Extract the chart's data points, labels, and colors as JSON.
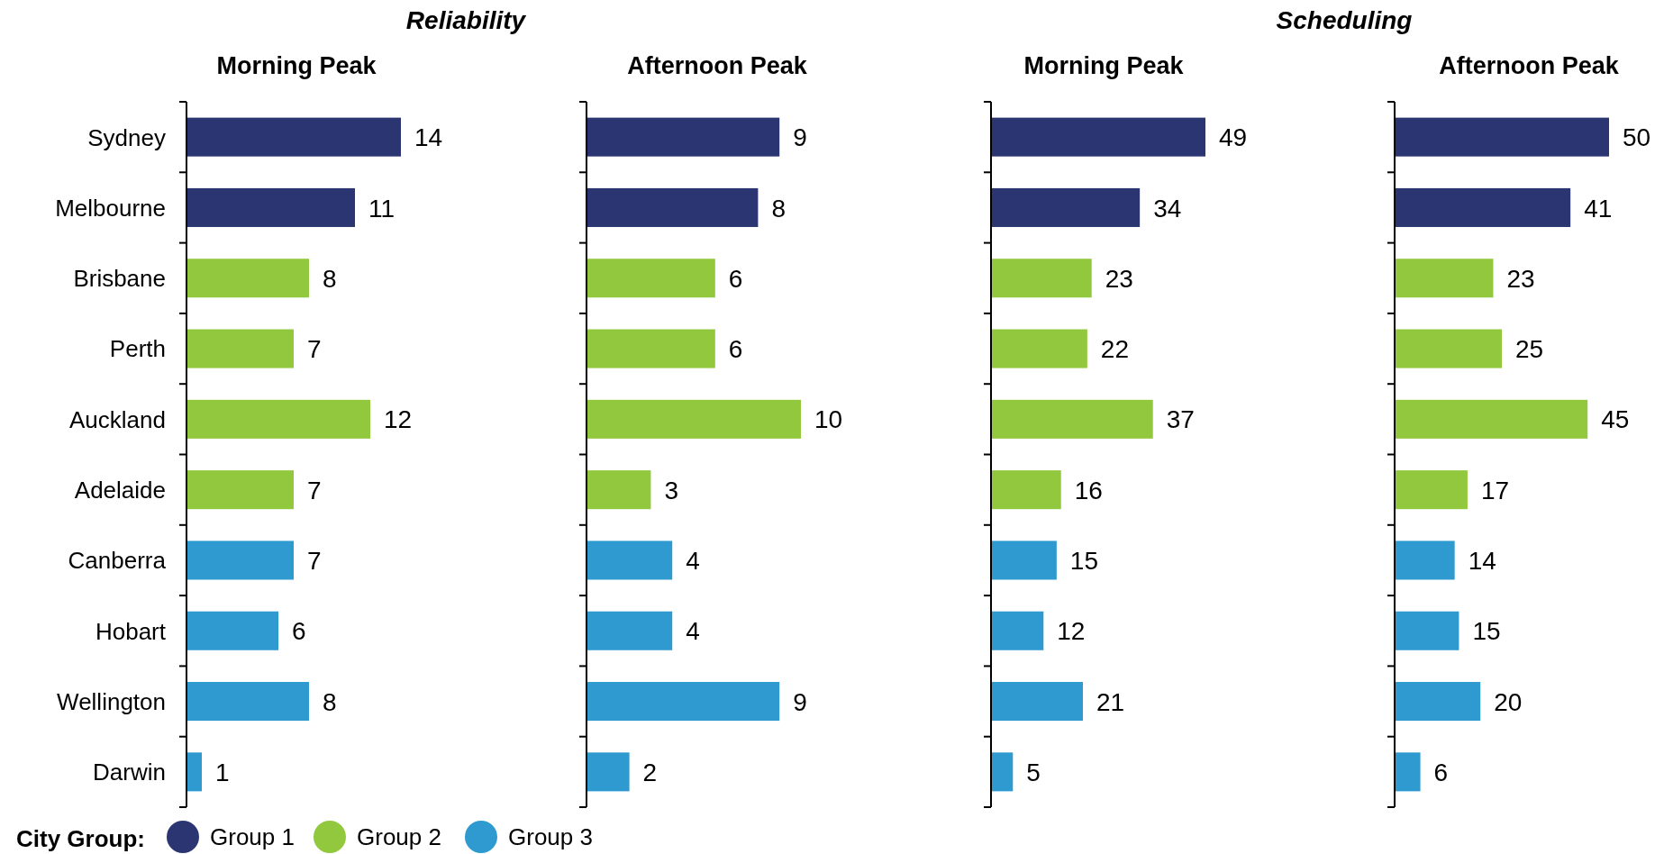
{
  "chart_data": [
    {
      "type": "bar",
      "orientation": "horizontal",
      "stacked": true,
      "title": "Morning Peak",
      "annotations": [
        "Reliability"
      ],
      "categories": [
        "Sydney",
        "Melbourne",
        "Brisbane",
        "Perth",
        "Auckland",
        "Adelaide",
        "Canberra",
        "Hobart",
        "Wellington",
        "Darwin"
      ],
      "series": [
        {
          "name": "Group 1",
          "color": "#2b3571",
          "values": [
            14,
            11,
            null,
            null,
            null,
            null,
            null,
            null,
            null,
            null
          ]
        },
        {
          "name": "Group 2",
          "color": "#92c83e",
          "values": [
            null,
            null,
            8,
            7,
            12,
            7,
            null,
            null,
            null,
            null
          ]
        },
        {
          "name": "Group 3",
          "color": "#2e9ad0",
          "values": [
            null,
            null,
            null,
            null,
            null,
            null,
            7,
            6,
            8,
            1
          ]
        }
      ],
      "data_labels": true,
      "tick_labels": "y",
      "legend": "bottom",
      "legend_title": "City Group:"
    },
    {
      "type": "bar",
      "orientation": "horizontal",
      "stacked": true,
      "title": "Afternoon Peak",
      "categories": [
        null,
        null,
        null,
        null,
        null,
        null,
        null,
        null,
        null,
        null
      ],
      "series": [
        {
          "color": "#2b3571",
          "values": [
            9,
            8,
            null,
            null,
            null,
            null,
            null,
            null,
            null,
            null
          ]
        },
        {
          "color": "#92c83e",
          "values": [
            null,
            null,
            6,
            6,
            10,
            3,
            null,
            null,
            null,
            null
          ]
        },
        {
          "color": "#2e9ad0",
          "values": [
            null,
            null,
            null,
            null,
            null,
            null,
            4,
            4,
            9,
            2
          ]
        }
      ],
      "data_labels": true
    },
    {
      "type": "bar",
      "orientation": "horizontal",
      "stacked": true,
      "title": "Morning Peak",
      "annotations": [
        "Scheduling"
      ],
      "categories": [
        null,
        null,
        null,
        null,
        null,
        null,
        null,
        null,
        null,
        null
      ],
      "series": [
        {
          "color": "#2b3571",
          "values": [
            49,
            34,
            null,
            null,
            null,
            null,
            null,
            null,
            null,
            null
          ]
        },
        {
          "color": "#92c83e",
          "values": [
            null,
            null,
            23,
            22,
            37,
            16,
            null,
            null,
            null,
            null
          ]
        },
        {
          "color": "#2e9ad0",
          "values": [
            null,
            null,
            null,
            null,
            null,
            null,
            15,
            12,
            21,
            5
          ]
        }
      ],
      "data_labels": true
    },
    {
      "type": "bar",
      "orientation": "horizontal",
      "stacked": true,
      "title": "Afternoon Peak",
      "categories": [
        null,
        null,
        null,
        null,
        null,
        null,
        null,
        null,
        null,
        null
      ],
      "series": [
        {
          "color": "#2b3571",
          "values": [
            50,
            41,
            null,
            null,
            null,
            null,
            null,
            null,
            null,
            null
          ]
        },
        {
          "color": "#92c83e",
          "values": [
            null,
            null,
            23,
            25,
            45,
            17,
            null,
            null,
            null,
            null
          ]
        },
        {
          "color": "#2e9ad0",
          "values": [
            null,
            null,
            null,
            null,
            null,
            null,
            14,
            15,
            20,
            6
          ]
        }
      ],
      "data_labels": true
    }
  ]
}
